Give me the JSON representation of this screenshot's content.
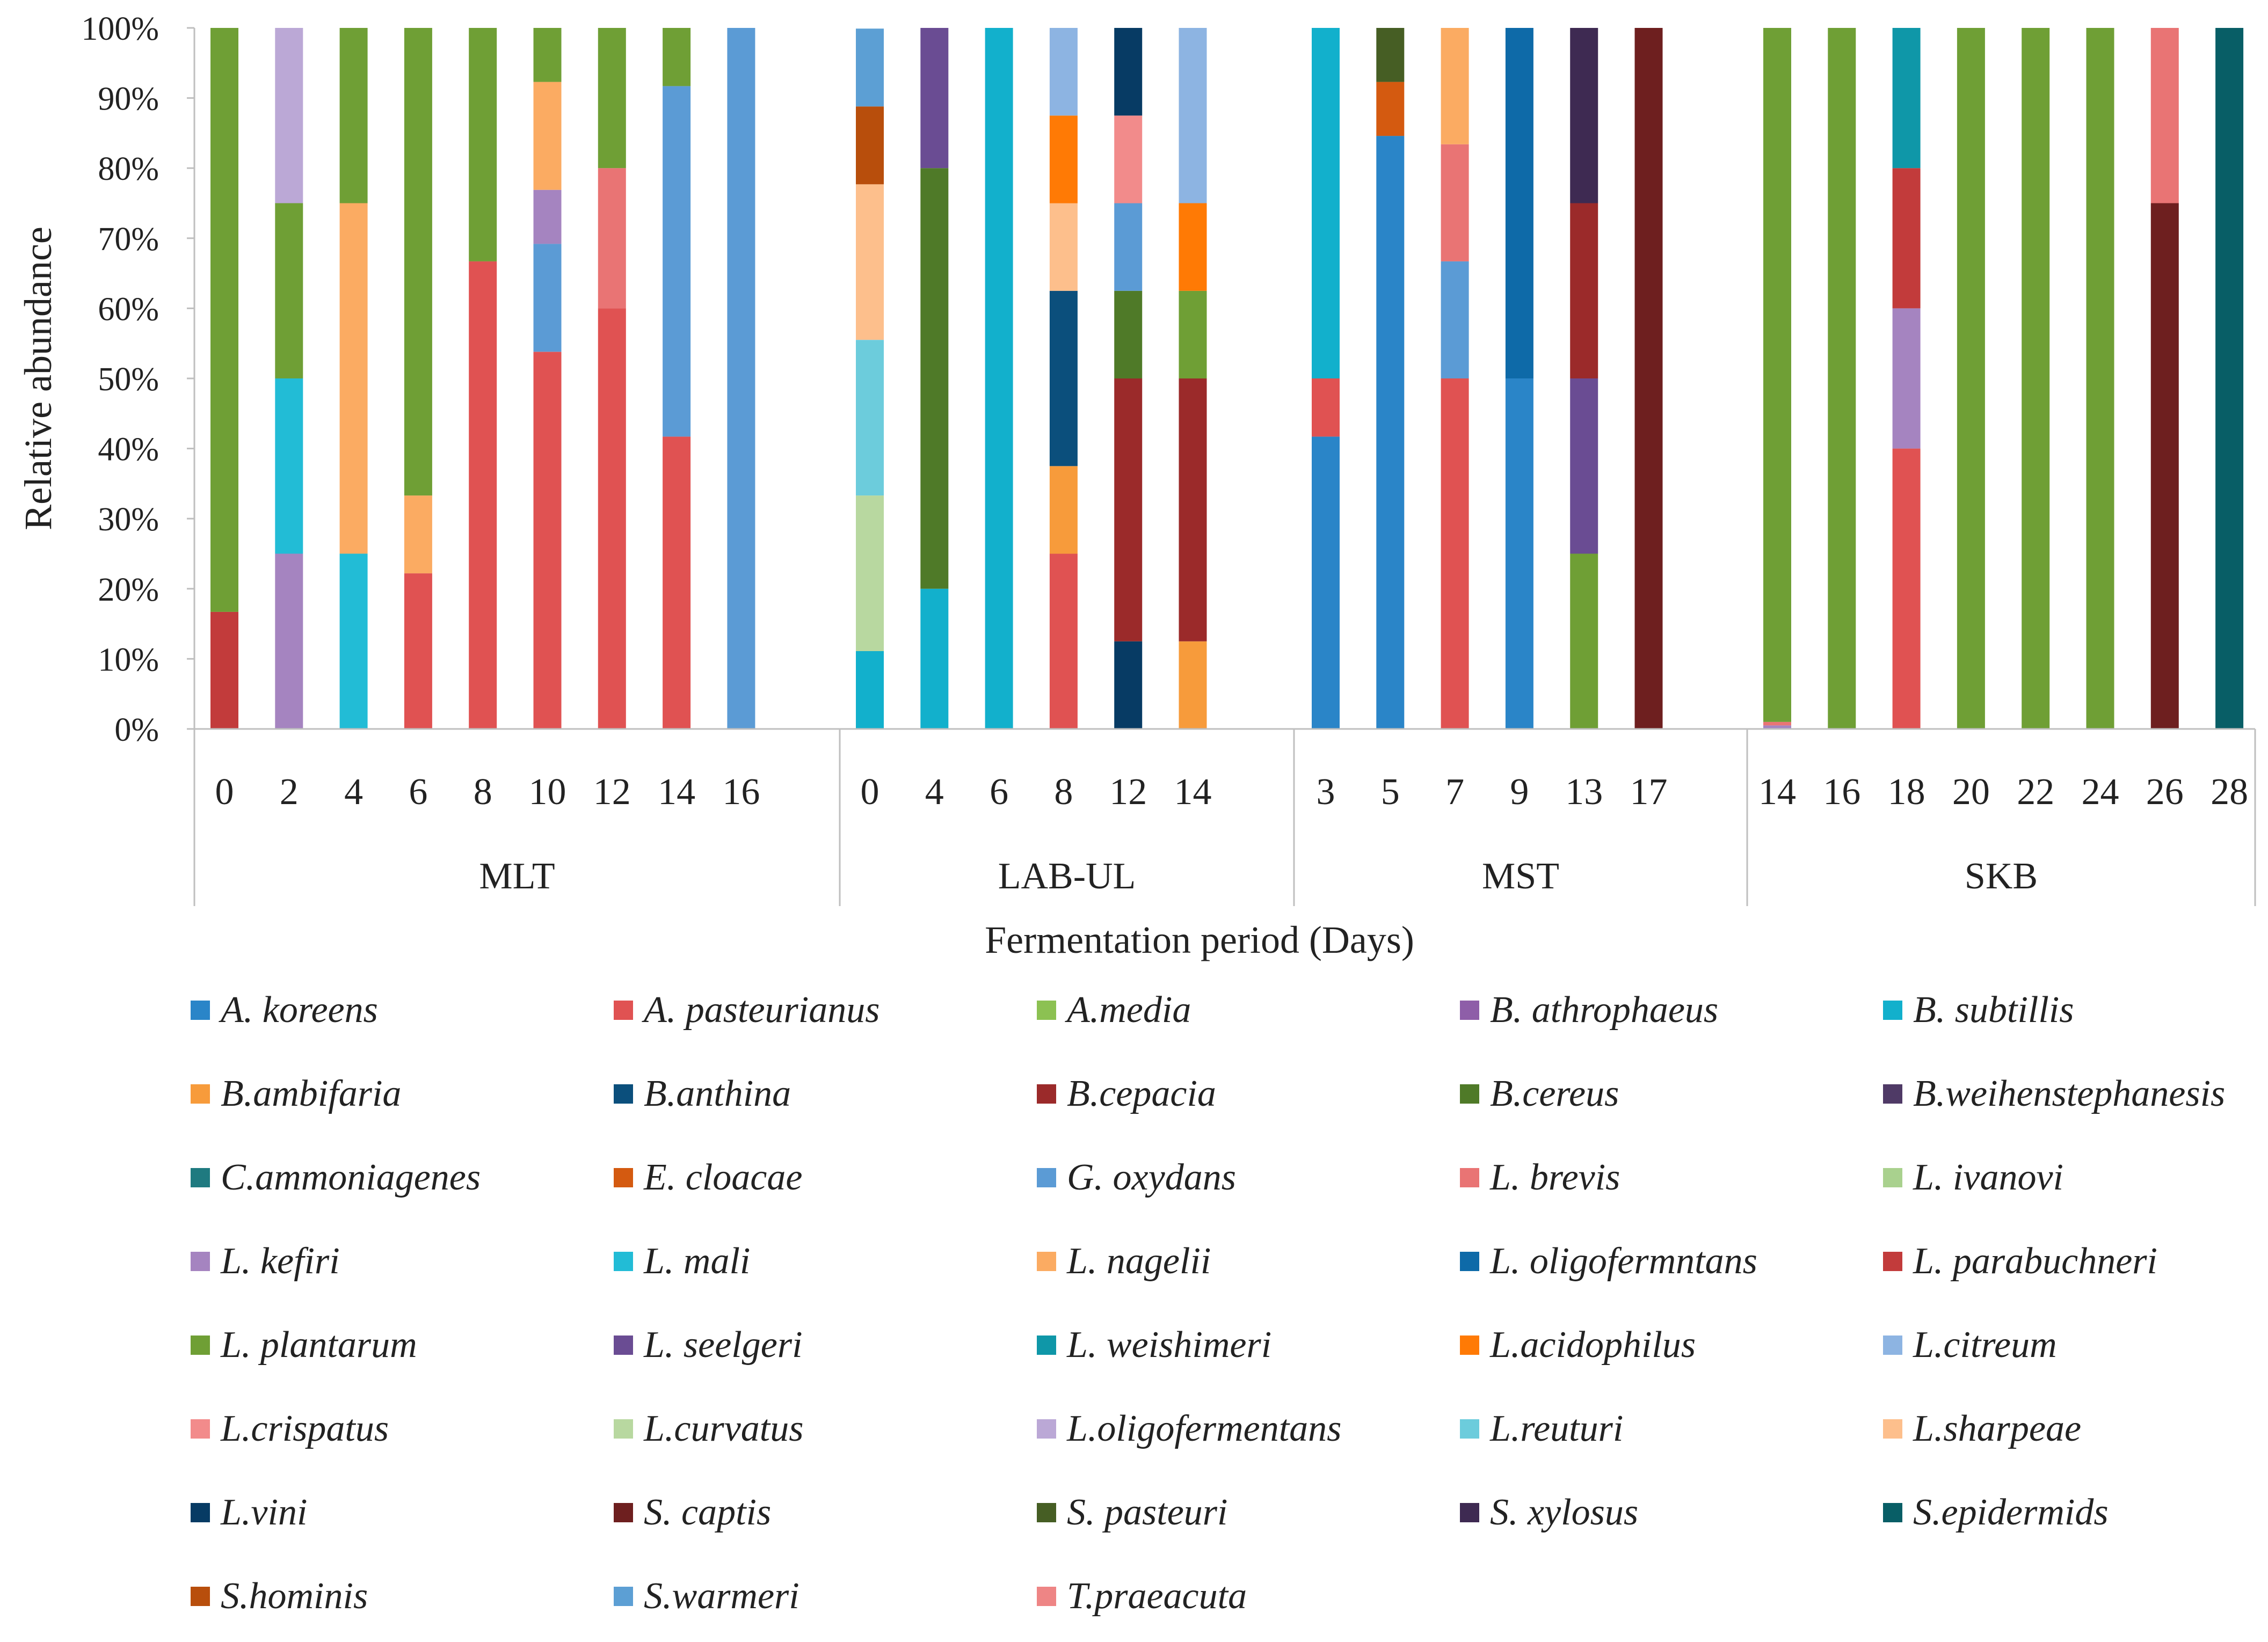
{
  "chart_data": {
    "type": "stacked-bar",
    "ylabel": "Relative abundance",
    "xlabel": "Fermentation period (Days)",
    "ylim": [
      0,
      100
    ],
    "yticks": [
      "0%",
      "10%",
      "20%",
      "30%",
      "40%",
      "50%",
      "60%",
      "70%",
      "80%",
      "90%",
      "100%"
    ],
    "grid": false,
    "legend_position": "bottom",
    "groups": [
      {
        "name": "MLT",
        "bars": [
          {
            "day": "0",
            "segments": [
              {
                "species": "L. parabuchneri",
                "value": 16.7
              },
              {
                "species": "L. plantarum",
                "value": 83.3
              }
            ]
          },
          {
            "day": "2",
            "segments": [
              {
                "species": "L. kefiri",
                "value": 25
              },
              {
                "species": "L. mali",
                "value": 25
              },
              {
                "species": "L. plantarum",
                "value": 25
              },
              {
                "species": "L.oligofermentans",
                "value": 25
              }
            ]
          },
          {
            "day": "4",
            "segments": [
              {
                "species": "L. mali",
                "value": 25
              },
              {
                "species": "L. nagelii",
                "value": 50
              },
              {
                "species": "L. plantarum",
                "value": 25
              }
            ]
          },
          {
            "day": "6",
            "segments": [
              {
                "species": "A. pasteurianus",
                "value": 22.2
              },
              {
                "species": "L. nagelii",
                "value": 11.1
              },
              {
                "species": "L. plantarum",
                "value": 66.7
              }
            ]
          },
          {
            "day": "8",
            "segments": [
              {
                "species": "A. pasteurianus",
                "value": 66.7
              },
              {
                "species": "L. plantarum",
                "value": 33.3
              }
            ]
          },
          {
            "day": "10",
            "segments": [
              {
                "species": "A. pasteurianus",
                "value": 53.8
              },
              {
                "species": "G. oxydans",
                "value": 15.4
              },
              {
                "species": "L. kefiri",
                "value": 7.7
              },
              {
                "species": "L. nagelii",
                "value": 15.4
              },
              {
                "species": "L. plantarum",
                "value": 7.7
              }
            ]
          },
          {
            "day": "12",
            "segments": [
              {
                "species": "A. pasteurianus",
                "value": 60
              },
              {
                "species": "L. brevis",
                "value": 20
              },
              {
                "species": "L. plantarum",
                "value": 20
              }
            ]
          },
          {
            "day": "14",
            "segments": [
              {
                "species": "A. pasteurianus",
                "value": 41.7
              },
              {
                "species": "G. oxydans",
                "value": 50
              },
              {
                "species": "L. plantarum",
                "value": 8.3
              }
            ]
          },
          {
            "day": "16",
            "segments": [
              {
                "species": "G. oxydans",
                "value": 100
              }
            ]
          }
        ]
      },
      {
        "name": "LAB-UL",
        "bars": [
          {
            "day": "0",
            "segments": [
              {
                "species": "B. subtillis",
                "value": 11.1
              },
              {
                "species": "L.curvatus",
                "value": 22.2
              },
              {
                "species": "L.reuturi",
                "value": 22.2
              },
              {
                "species": "L.sharpeae",
                "value": 22.2
              },
              {
                "species": "S.hominis",
                "value": 11.1
              },
              {
                "species": "S.warmeri",
                "value": 11.1
              }
            ]
          },
          {
            "day": "4",
            "segments": [
              {
                "species": "B. subtillis",
                "value": 20
              },
              {
                "species": "B.cereus",
                "value": 60
              },
              {
                "species": "L. seelgeri",
                "value": 20
              }
            ]
          },
          {
            "day": "6",
            "segments": [
              {
                "species": "B. subtillis",
                "value": 100
              }
            ]
          },
          {
            "day": "8",
            "segments": [
              {
                "species": "A. pasteurianus",
                "value": 25
              },
              {
                "species": "B.ambifaria",
                "value": 12.5
              },
              {
                "species": "B.anthina",
                "value": 25
              },
              {
                "species": "L.sharpeae",
                "value": 12.5
              },
              {
                "species": "L.acidophilus",
                "value": 12.5
              },
              {
                "species": "L.citreum",
                "value": 12.5
              }
            ]
          },
          {
            "day": "12",
            "segments": [
              {
                "species": "L.vini",
                "value": 12.5
              },
              {
                "species": "B.cepacia",
                "value": 37.5
              },
              {
                "species": "B.cereus",
                "value": 12.5
              },
              {
                "species": "G. oxydans",
                "value": 12.5
              },
              {
                "species": "L.crispatus",
                "value": 12.5
              },
              {
                "species": "L.vini",
                "value": 12.5
              }
            ]
          },
          {
            "day": "14",
            "segments": [
              {
                "species": "B.ambifaria",
                "value": 12.5
              },
              {
                "species": "B.cepacia",
                "value": 37.5
              },
              {
                "species": "L. plantarum",
                "value": 12.5
              },
              {
                "species": "L.acidophilus",
                "value": 12.5
              },
              {
                "species": "L.citreum",
                "value": 25
              }
            ]
          }
        ]
      },
      {
        "name": "MST",
        "bars": [
          {
            "day": "3",
            "segments": [
              {
                "species": "A. koreens",
                "value": 41.7
              },
              {
                "species": "A. pasteurianus",
                "value": 8.3
              },
              {
                "species": "B. subtillis",
                "value": 50
              }
            ]
          },
          {
            "day": "5",
            "segments": [
              {
                "species": "A. koreens",
                "value": 84.6
              },
              {
                "species": "E. cloacae",
                "value": 7.7
              },
              {
                "species": "S. pasteuri",
                "value": 7.7
              }
            ]
          },
          {
            "day": "7",
            "segments": [
              {
                "species": "A. pasteurianus",
                "value": 50
              },
              {
                "species": "G. oxydans",
                "value": 16.7
              },
              {
                "species": "L. brevis",
                "value": 16.7
              },
              {
                "species": "L. nagelii",
                "value": 16.6
              }
            ]
          },
          {
            "day": "9",
            "segments": [
              {
                "species": "A. koreens",
                "value": 50
              },
              {
                "species": "L. oligofermntans",
                "value": 50
              }
            ]
          },
          {
            "day": "13",
            "segments": [
              {
                "species": "L. plantarum",
                "value": 25
              },
              {
                "species": "L. seelgeri",
                "value": 25
              },
              {
                "species": "B.cepacia",
                "value": 25
              },
              {
                "species": "S. xylosus",
                "value": 25
              }
            ]
          },
          {
            "day": "17",
            "segments": [
              {
                "species": "S. captis",
                "value": 100
              }
            ]
          }
        ]
      },
      {
        "name": "SKB",
        "bars": [
          {
            "day": "14",
            "segments": [
              {
                "species": "L. kefiri",
                "value": 0.5
              },
              {
                "species": "L. brevis",
                "value": 0.5
              },
              {
                "species": "L. plantarum",
                "value": 99
              }
            ]
          },
          {
            "day": "16",
            "segments": [
              {
                "species": "L. plantarum",
                "value": 100
              }
            ]
          },
          {
            "day": "18",
            "segments": [
              {
                "species": "A. pasteurianus",
                "value": 40
              },
              {
                "species": "L. kefiri",
                "value": 20
              },
              {
                "species": "L. parabuchneri",
                "value": 20
              },
              {
                "species": "L. weishimeri",
                "value": 20
              }
            ]
          },
          {
            "day": "20",
            "segments": [
              {
                "species": "L. plantarum",
                "value": 100
              }
            ]
          },
          {
            "day": "22",
            "segments": [
              {
                "species": "L. plantarum",
                "value": 100
              }
            ]
          },
          {
            "day": "24",
            "segments": [
              {
                "species": "L. plantarum",
                "value": 100
              }
            ]
          },
          {
            "day": "26",
            "segments": [
              {
                "species": "S. captis",
                "value": 75
              },
              {
                "species": "L. brevis",
                "value": 25
              }
            ]
          },
          {
            "day": "28",
            "segments": [
              {
                "species": "S.epidermids",
                "value": 100
              }
            ]
          }
        ]
      }
    ],
    "legend": [
      {
        "name": "A. koreens",
        "color": "#2a85c8"
      },
      {
        "name": "A. pasteurianus",
        "color": "#e05252"
      },
      {
        "name": "A.media",
        "color": "#8cc152"
      },
      {
        "name": "B. athrophaeus",
        "color": "#8e5ea8"
      },
      {
        "name": "B. subtillis",
        "color": "#12b0cc"
      },
      {
        "name": "B.ambifaria",
        "color": "#f79b3b"
      },
      {
        "name": "B.anthina",
        "color": "#0b4f7c"
      },
      {
        "name": "B.cepacia",
        "color": "#9b2a2a"
      },
      {
        "name": "B.cereus",
        "color": "#4f7a28"
      },
      {
        "name": "B.weihenstephanesis",
        "color": "#4f3a66"
      },
      {
        "name": "C.ammoniagenes",
        "color": "#1f7a80"
      },
      {
        "name": "E. cloacae",
        "color": "#d45a10"
      },
      {
        "name": "G. oxydans",
        "color": "#5b9bd5"
      },
      {
        "name": "L. brevis",
        "color": "#e97474"
      },
      {
        "name": "L. ivanovi",
        "color": "#a9d18e"
      },
      {
        "name": "L. kefiri",
        "color": "#a584c0"
      },
      {
        "name": "L. mali",
        "color": "#22bcd6"
      },
      {
        "name": "L. nagelii",
        "color": "#fbab62"
      },
      {
        "name": "L. oligofermntans",
        "color": "#0e6aa8"
      },
      {
        "name": "L. parabuchneri",
        "color": "#c23b3b"
      },
      {
        "name": "L. plantarum",
        "color": "#6f9f35"
      },
      {
        "name": "L. seelgeri",
        "color": "#6a4c93"
      },
      {
        "name": "L. weishimeri",
        "color": "#0f97a8"
      },
      {
        "name": "L.acidophilus",
        "color": "#ff7a05"
      },
      {
        "name": "L.citreum",
        "color": "#8db4e2"
      },
      {
        "name": "L.crispatus",
        "color": "#f28b8b"
      },
      {
        "name": "L.curvatus",
        "color": "#b8d8a0"
      },
      {
        "name": "L.oligofermentans",
        "color": "#bba8d6"
      },
      {
        "name": "L.reuturi",
        "color": "#6cccdc"
      },
      {
        "name": "L.sharpeae",
        "color": "#fdbf8c"
      },
      {
        "name": "L.vini",
        "color": "#073b64"
      },
      {
        "name": "S. captis",
        "color": "#6e1f1f"
      },
      {
        "name": "S. pasteuri",
        "color": "#465e24"
      },
      {
        "name": "S. xylosus",
        "color": "#3e2a52"
      },
      {
        "name": "S.epidermids",
        "color": "#085e66"
      },
      {
        "name": "S.hominis",
        "color": "#b84e0c"
      },
      {
        "name": "S.warmeri",
        "color": "#5c9fd4"
      },
      {
        "name": "T.praeacuta",
        "color": "#ee8585"
      }
    ]
  }
}
